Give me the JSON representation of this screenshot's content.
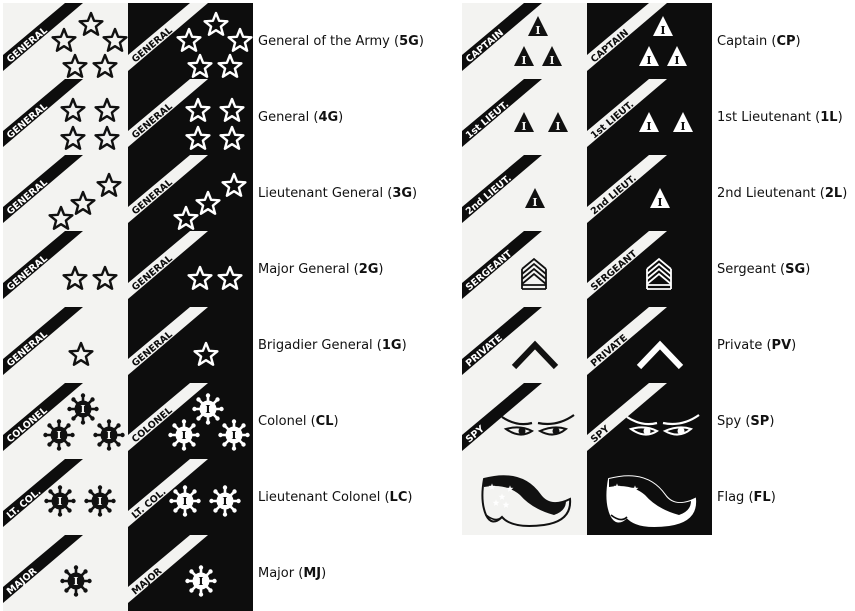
{
  "ranks_left": [
    {
      "key": "5G",
      "tag": "GENERAL",
      "name": "General of the Army",
      "code": "5G",
      "insignia": "star",
      "count": 5
    },
    {
      "key": "4G",
      "tag": "GENERAL",
      "name": "General",
      "code": "4G",
      "insignia": "star",
      "count": 4
    },
    {
      "key": "3G",
      "tag": "GENERAL",
      "name": "Lieutenant General",
      "code": "3G",
      "insignia": "star",
      "count": 3
    },
    {
      "key": "2G",
      "tag": "GENERAL",
      "name": "Major General",
      "code": "2G",
      "insignia": "star",
      "count": 2
    },
    {
      "key": "1G",
      "tag": "GENERAL",
      "name": "Brigadier General",
      "code": "1G",
      "insignia": "star",
      "count": 1
    },
    {
      "key": "CL",
      "tag": "COLONEL",
      "name": "Colonel",
      "code": "CL",
      "insignia": "sun",
      "count": 3
    },
    {
      "key": "LC",
      "tag": "LT. COL.",
      "name": "Lieutenant Colonel",
      "code": "LC",
      "insignia": "sun",
      "count": 2
    },
    {
      "key": "MJ",
      "tag": "MAJOR",
      "name": "Major",
      "code": "MJ",
      "insignia": "sun",
      "count": 1
    }
  ],
  "ranks_right": [
    {
      "key": "CP",
      "tag": "CAPTAIN",
      "name": "Captain",
      "code": "CP",
      "insignia": "triangle",
      "count": 3
    },
    {
      "key": "1L",
      "tag": "1st LIEUT.",
      "name": "1st Lieutenant",
      "code": "1L",
      "insignia": "triangle",
      "count": 2
    },
    {
      "key": "2L",
      "tag": "2nd LIEUT.",
      "name": "2nd Lieutenant",
      "code": "2L",
      "insignia": "triangle",
      "count": 1
    },
    {
      "key": "SG",
      "tag": "SERGEANT",
      "name": "Sergeant",
      "code": "SG",
      "insignia": "chevrons",
      "count": 3
    },
    {
      "key": "PV",
      "tag": "PRIVATE",
      "name": "Private",
      "code": "PV",
      "insignia": "chevron",
      "count": 1
    },
    {
      "key": "SP",
      "tag": "SPY",
      "name": "Spy",
      "code": "SP",
      "insignia": "eyes",
      "count": 1
    },
    {
      "key": "FL",
      "tag": "",
      "name": "Flag",
      "code": "FL",
      "insignia": "flag",
      "count": 1
    }
  ],
  "insignia_glyph": {
    "triangle": "I",
    "sun": "I"
  },
  "colors": {
    "light_tile": "#f3f3f1",
    "dark_tile": "#0d0d0d",
    "ink": "#111111"
  }
}
